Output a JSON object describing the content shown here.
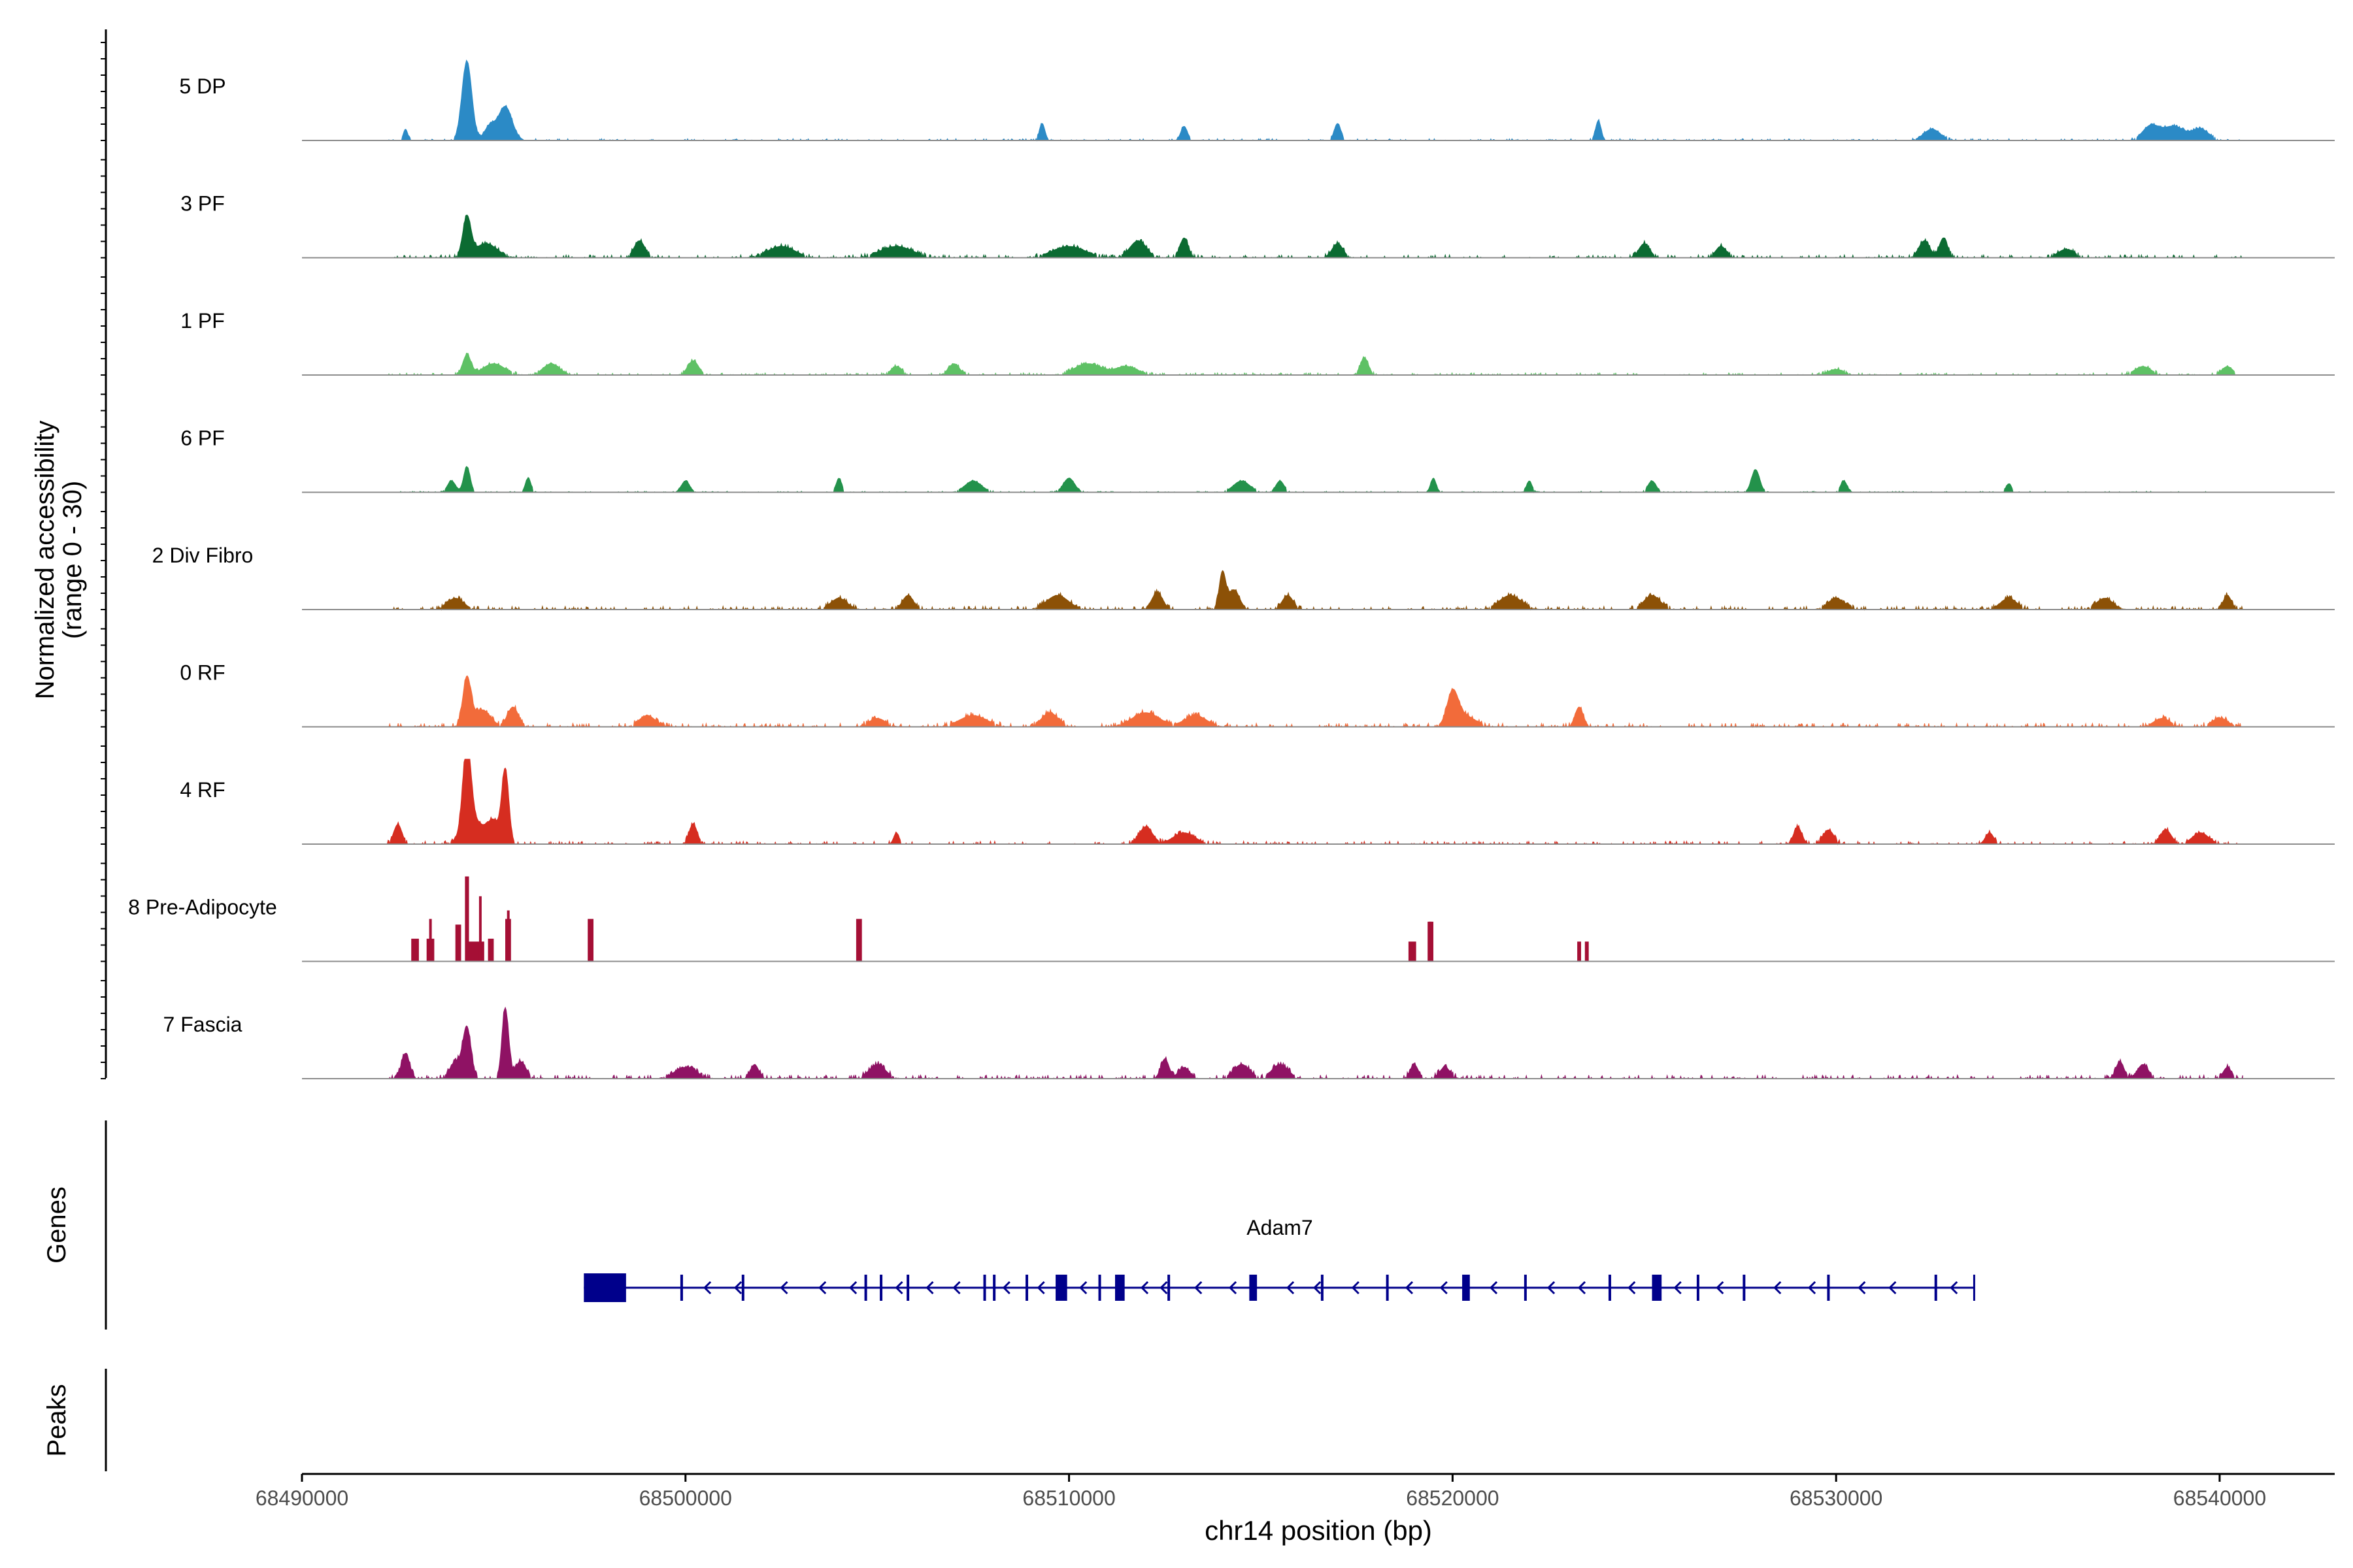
{
  "chart_data": {
    "type": "area",
    "subtype": "genome-coverage-tracks",
    "ylabel_line1": "Normalized accessibility",
    "ylabel_line2": "(range 0 - 30)",
    "yrange": [
      0,
      30
    ],
    "xlabel": "chr14 position (bp)",
    "xlim": [
      68490000,
      68543000
    ],
    "xticks": [
      68490000,
      68500000,
      68510000,
      68520000,
      68530000,
      68540000
    ],
    "xtick_labels": [
      "68490000",
      "68500000",
      "68510000",
      "68520000",
      "68530000",
      "68540000"
    ],
    "data_start": 68492200,
    "data_end": 68540600,
    "series": [
      {
        "name": "5 DP",
        "color": "#2b8ac6",
        "peaks": [
          [
            68494300,
            28,
            180
          ],
          [
            68495300,
            12,
            250
          ],
          [
            68492700,
            4,
            80
          ],
          [
            68494900,
            5,
            200
          ],
          [
            68509300,
            6,
            100
          ],
          [
            68513000,
            5,
            120
          ],
          [
            68517000,
            6,
            120
          ],
          [
            68523800,
            7,
            100
          ],
          [
            68532500,
            4,
            300
          ],
          [
            68538200,
            5,
            300
          ],
          [
            68538800,
            5,
            400
          ],
          [
            68539500,
            4,
            300
          ]
        ],
        "noise": 0.25
      },
      {
        "name": "3 PF",
        "color": "#0b6b32",
        "peaks": [
          [
            68494300,
            14,
            150
          ],
          [
            68494800,
            5,
            400
          ],
          [
            68498800,
            6,
            200
          ],
          [
            68502500,
            4,
            500
          ],
          [
            68505500,
            4,
            600
          ],
          [
            68510000,
            4,
            600
          ],
          [
            68511800,
            6,
            300
          ],
          [
            68513000,
            7,
            150
          ],
          [
            68517000,
            5,
            200
          ],
          [
            68525000,
            5,
            200
          ],
          [
            68527000,
            4,
            200
          ],
          [
            68532300,
            6,
            200
          ],
          [
            68532800,
            7,
            150
          ],
          [
            68536000,
            3,
            300
          ]
        ],
        "noise": 0.4
      },
      {
        "name": "1 PF",
        "color": "#5ec165",
        "peaks": [
          [
            68494300,
            7,
            150
          ],
          [
            68495000,
            4,
            400
          ],
          [
            68496500,
            4,
            300
          ],
          [
            68500200,
            5,
            200
          ],
          [
            68505500,
            3,
            200
          ],
          [
            68507000,
            4,
            200
          ],
          [
            68510500,
            4,
            500
          ],
          [
            68511500,
            3,
            400
          ],
          [
            68517700,
            6,
            150
          ],
          [
            68530000,
            2,
            300
          ],
          [
            68538000,
            3,
            300
          ],
          [
            68540200,
            3,
            200
          ]
        ],
        "noise": 0.3
      },
      {
        "name": "6 PF",
        "color": "#23924b",
        "peaks": [
          [
            68494300,
            9,
            120
          ],
          [
            68493900,
            4,
            150
          ],
          [
            68495900,
            5,
            100
          ],
          [
            68500000,
            4,
            150
          ],
          [
            68504000,
            5,
            100
          ],
          [
            68507500,
            4,
            300
          ],
          [
            68510000,
            5,
            200
          ],
          [
            68514500,
            4,
            300
          ],
          [
            68515500,
            4,
            150
          ],
          [
            68519500,
            5,
            100
          ],
          [
            68522000,
            4,
            100
          ],
          [
            68525200,
            4,
            150
          ],
          [
            68527900,
            8,
            150
          ],
          [
            68530200,
            4,
            120
          ],
          [
            68534500,
            3,
            100
          ]
        ],
        "noise": 0.15
      },
      {
        "name": "2 Div Fibro",
        "color": "#8c5107",
        "peaks": [
          [
            68494000,
            4,
            300
          ],
          [
            68504000,
            4,
            300
          ],
          [
            68505800,
            5,
            200
          ],
          [
            68509700,
            5,
            400
          ],
          [
            68512300,
            6,
            200
          ],
          [
            68514000,
            13,
            120
          ],
          [
            68514300,
            7,
            200
          ],
          [
            68515700,
            5,
            200
          ],
          [
            68521500,
            5,
            400
          ],
          [
            68525200,
            5,
            300
          ],
          [
            68530000,
            4,
            300
          ],
          [
            68534500,
            4,
            300
          ],
          [
            68537000,
            4,
            300
          ],
          [
            68540200,
            5,
            150
          ]
        ],
        "noise": 0.45
      },
      {
        "name": "0 RF",
        "color": "#f26b3a",
        "peaks": [
          [
            68494300,
            17,
            150
          ],
          [
            68494700,
            6,
            300
          ],
          [
            68495500,
            7,
            200
          ],
          [
            68499000,
            4,
            300
          ],
          [
            68505000,
            3,
            300
          ],
          [
            68507500,
            4,
            500
          ],
          [
            68509500,
            5,
            300
          ],
          [
            68512000,
            5,
            500
          ],
          [
            68513300,
            4,
            400
          ],
          [
            68520000,
            11,
            200
          ],
          [
            68520300,
            4,
            400
          ],
          [
            68523300,
            7,
            150
          ],
          [
            68538500,
            3,
            300
          ],
          [
            68540000,
            3,
            300
          ]
        ],
        "noise": 0.5
      },
      {
        "name": "4 RF",
        "color": "#d62d20",
        "peaks": [
          [
            68494300,
            30,
            150
          ],
          [
            68494500,
            8,
            400
          ],
          [
            68495300,
            26,
            130
          ],
          [
            68495000,
            7,
            200
          ],
          [
            68492500,
            7,
            150
          ],
          [
            68500200,
            7,
            150
          ],
          [
            68505500,
            4,
            100
          ],
          [
            68512000,
            6,
            250
          ],
          [
            68513000,
            4,
            400
          ],
          [
            68529000,
            6,
            150
          ],
          [
            68529800,
            5,
            200
          ],
          [
            68534000,
            4,
            150
          ],
          [
            68538600,
            5,
            200
          ],
          [
            68539500,
            4,
            300
          ]
        ],
        "noise": 0.4
      },
      {
        "name": "8 Pre-Adipocyte",
        "color": "#a50f35",
        "blocks": [
          [
            68492850,
            68493050,
            8
          ],
          [
            68493250,
            68493450,
            8
          ],
          [
            68494000,
            68494150,
            13
          ],
          [
            68494250,
            68494350,
            30
          ],
          [
            68494350,
            68494750,
            7
          ],
          [
            68494850,
            68495000,
            8
          ],
          [
            68495300,
            68495450,
            15
          ],
          [
            68497450,
            68497600,
            15
          ],
          [
            68504450,
            68504600,
            15
          ],
          [
            68518850,
            68519050,
            7
          ],
          [
            68519350,
            68519500,
            14
          ],
          [
            68523250,
            68523350,
            7
          ],
          [
            68523450,
            68523550,
            7
          ]
        ],
        "spikes": [
          [
            68493350,
            15
          ],
          [
            68494320,
            30
          ],
          [
            68494650,
            23
          ],
          [
            68495380,
            18
          ],
          [
            68497500,
            15
          ],
          [
            68504520,
            15
          ],
          [
            68519420,
            14
          ]
        ]
      },
      {
        "name": "7 Fascia",
        "color": "#8f1264",
        "peaks": [
          [
            68492700,
            9,
            150
          ],
          [
            68494300,
            18,
            150
          ],
          [
            68495300,
            25,
            120
          ],
          [
            68495700,
            6,
            200
          ],
          [
            68494000,
            6,
            200
          ],
          [
            68500000,
            4,
            400
          ],
          [
            68501800,
            5,
            150
          ],
          [
            68505000,
            5,
            300
          ],
          [
            68512500,
            7,
            150
          ],
          [
            68513000,
            4,
            200
          ],
          [
            68514500,
            5,
            300
          ],
          [
            68515500,
            5,
            300
          ],
          [
            68519000,
            5,
            150
          ],
          [
            68519800,
            4,
            200
          ],
          [
            68537400,
            6,
            150
          ],
          [
            68538000,
            5,
            200
          ],
          [
            68540200,
            4,
            150
          ]
        ],
        "noise": 0.5
      }
    ],
    "gene_track_label": "Genes",
    "peaks_track_label": "Peaks",
    "gene": {
      "name": "Adam7",
      "color": "#00008b",
      "start": 68497350,
      "end": 68533600,
      "strand": "-",
      "utr": [
        68497350,
        68498450
      ],
      "exons": [
        68499900,
        68501500,
        68504700,
        68505100,
        68505800,
        68507800,
        68508050,
        68508900,
        68509800,
        68510800,
        68511300,
        68512600,
        68514800,
        68516600,
        68518300,
        68520300,
        68521900,
        68524100,
        68525300,
        68526400,
        68527600,
        68529800,
        68532600
      ],
      "thick_exons": [
        [
          68509650,
          68509950
        ],
        [
          68511200,
          68511450
        ],
        [
          68514700,
          68514900
        ],
        [
          68520250,
          68520450
        ],
        [
          68525200,
          68525450
        ]
      ],
      "chevrons": [
        68500500,
        68501300,
        68502500,
        68503500,
        68504300,
        68505500,
        68506300,
        68507000,
        68508300,
        68509200,
        68510300,
        68511900,
        68512400,
        68513300,
        68514200,
        68515700,
        68516400,
        68517400,
        68518800,
        68519700,
        68521000,
        68522500,
        68523300,
        68524600,
        68525800,
        68526900,
        68528400,
        68529300,
        68530600,
        68531400,
        68533000
      ]
    }
  }
}
